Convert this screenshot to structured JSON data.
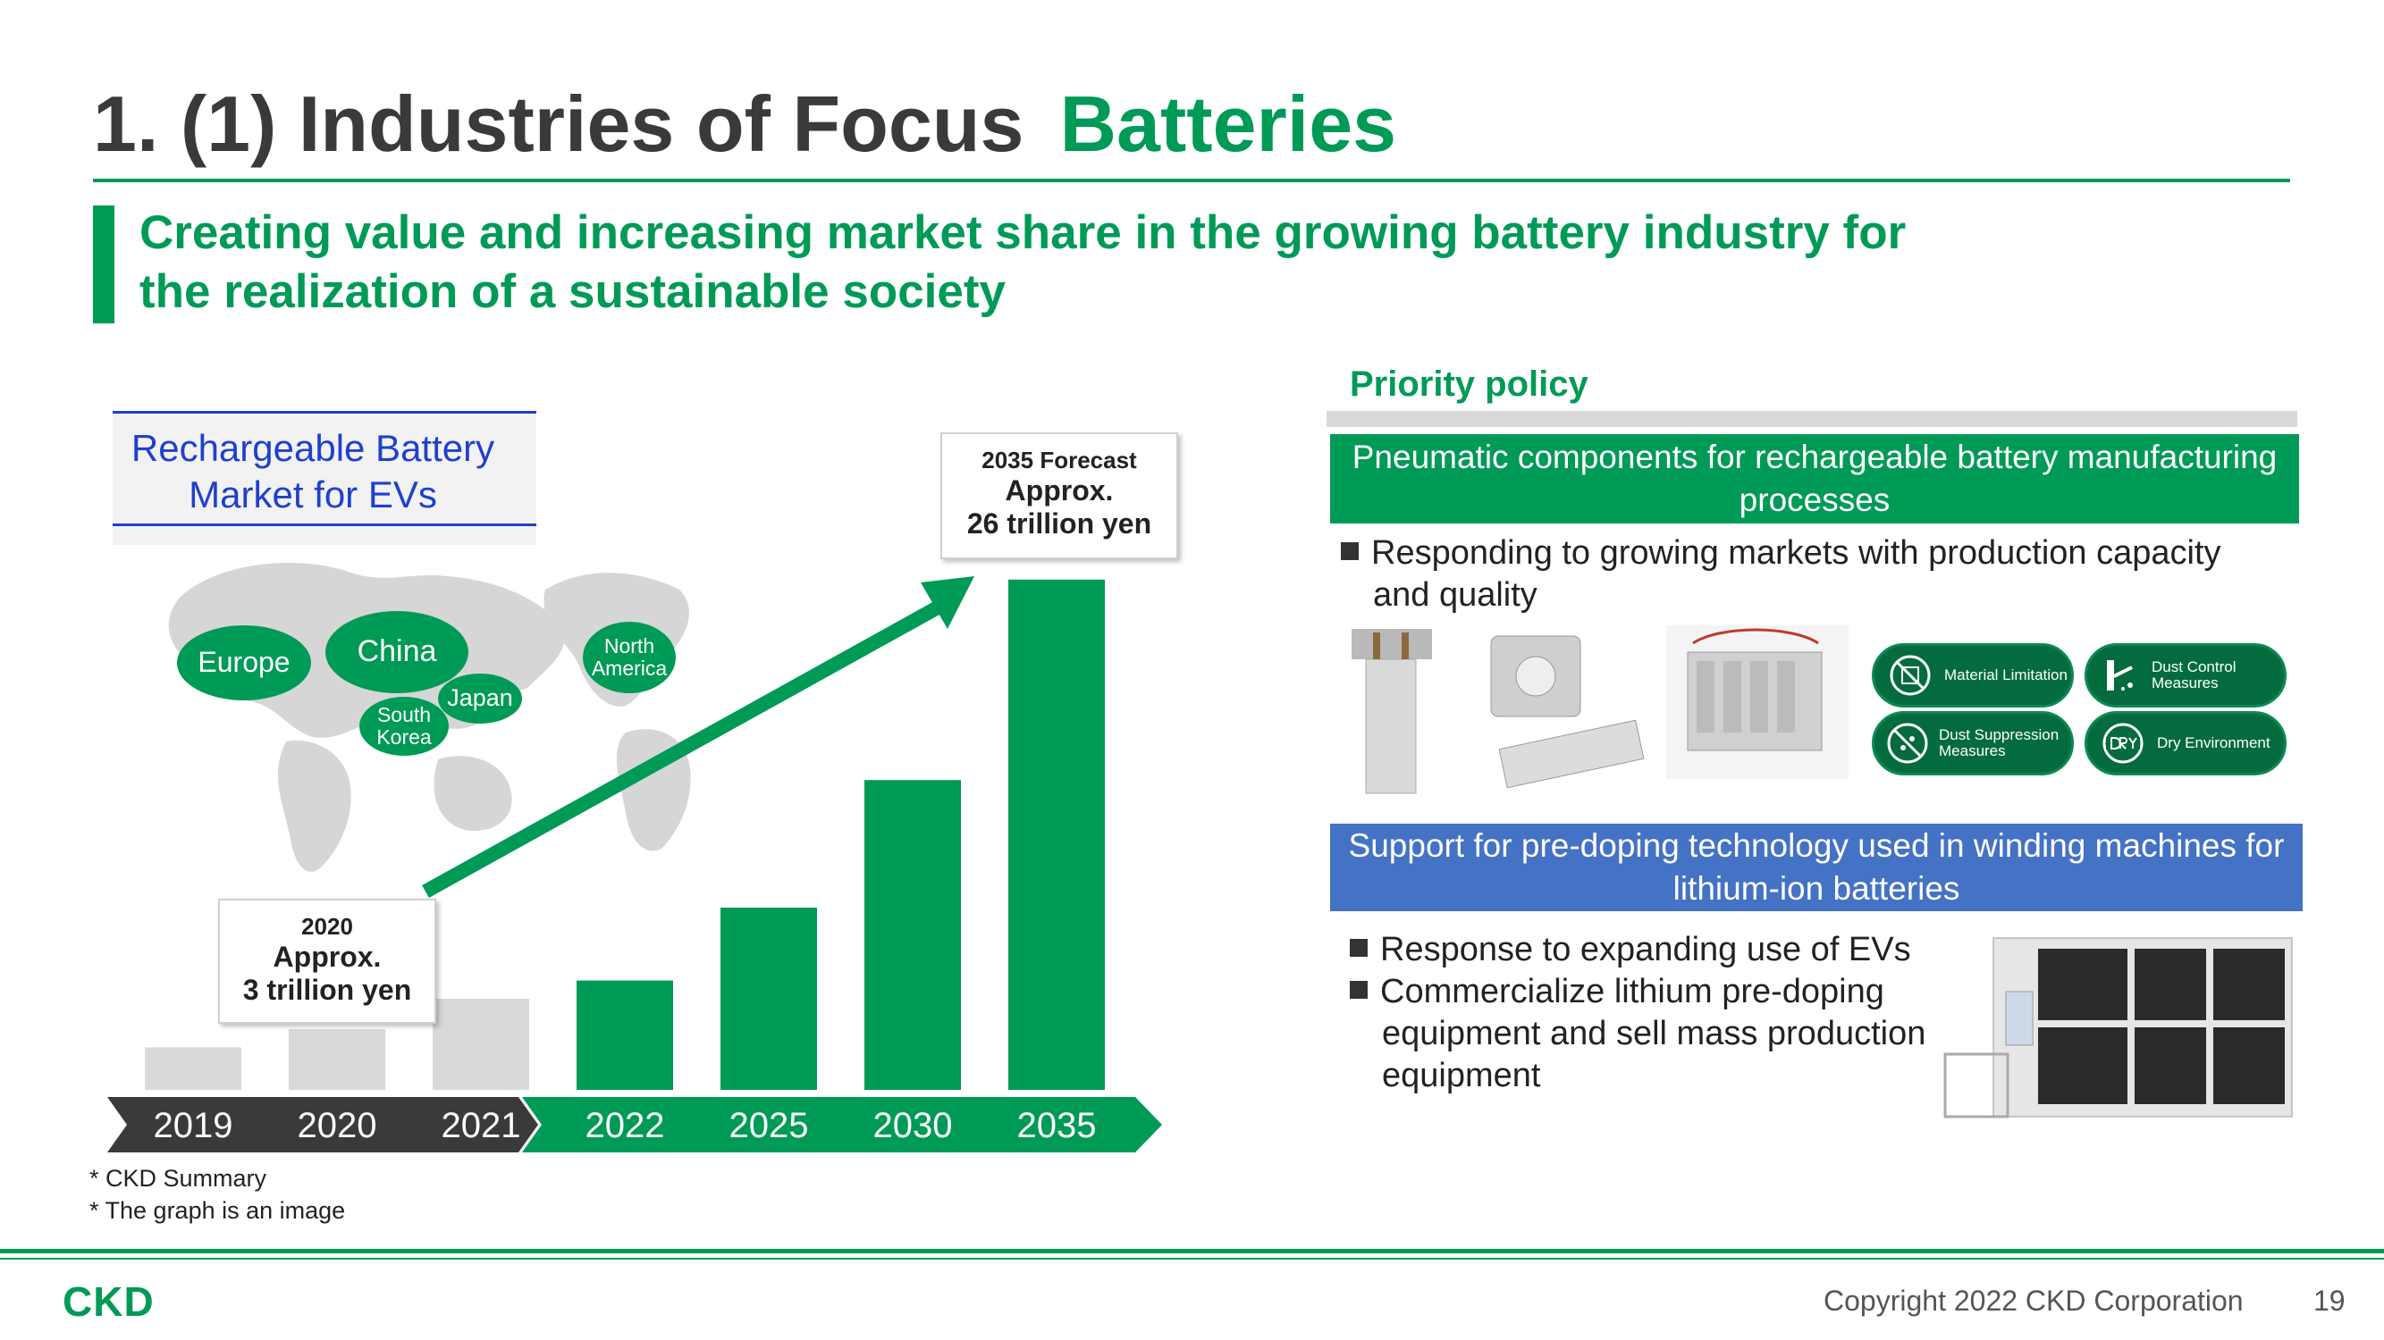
{
  "header": {
    "title": "1. (1) Industries of Focus",
    "title_accent": "Batteries",
    "subtitle_line1": "Creating value and increasing market share in the growing battery industry for",
    "subtitle_line2": "the realization of a sustainable society"
  },
  "market": {
    "label_line1": "Rechargeable Battery",
    "label_line2": "Market for EVs",
    "regions": [
      "Europe",
      "China",
      "Japan",
      "South Korea",
      "North America"
    ]
  },
  "chart_data": {
    "type": "bar",
    "categories": [
      "2019",
      "2020",
      "2021",
      "2022",
      "2025",
      "2030",
      "2035"
    ],
    "values": [
      1.4,
      2.0,
      3.0,
      3.6,
      6.0,
      10.2,
      16.8
    ],
    "value_unit": "relative height (graph is an image)",
    "annotations": [
      {
        "year": "2020",
        "label": "2020",
        "line1": "Approx.",
        "line2": "3 trillion yen"
      },
      {
        "year": "2035",
        "label": "2035 Forecast",
        "line1": "Approx.",
        "line2": "26 trillion yen"
      }
    ],
    "colors": {
      "past": "#d9d9d9",
      "future": "#009a57"
    }
  },
  "footnotes": [
    "* CKD Summary",
    "* The graph is an image"
  ],
  "priority": {
    "heading": "Priority policy",
    "band1": "Pneumatic components for rechargeable battery manufacturing processes",
    "band1_bullet_line1": "Responding to growing markets with production capacity",
    "band1_bullet_line2": "and quality",
    "badges": [
      {
        "icon": "material-limitation-icon",
        "text": "Material Limitation"
      },
      {
        "icon": "dust-control-icon",
        "text": "Dust Control Measures"
      },
      {
        "icon": "dust-suppression-icon",
        "text": "Dust Suppression Measures"
      },
      {
        "icon": "dry-environment-icon",
        "text": "Dry Environment"
      }
    ],
    "band2": "Support for pre-doping technology used in winding machines for lithium-ion batteries",
    "band2_bullet1": "Response to expanding use of EVs",
    "band2_bullet2_line1": "Commercialize lithium pre-doping",
    "band2_bullet2_line2": "equipment and sell mass production",
    "band2_bullet2_line3": "equipment"
  },
  "footer": {
    "logo": "CKD",
    "copyright": "Copyright 2022 CKD Corporation",
    "page": "19"
  },
  "colors": {
    "accent": "#009a57",
    "blue_band": "#4472c4",
    "market_blue": "#1f3fcf"
  }
}
